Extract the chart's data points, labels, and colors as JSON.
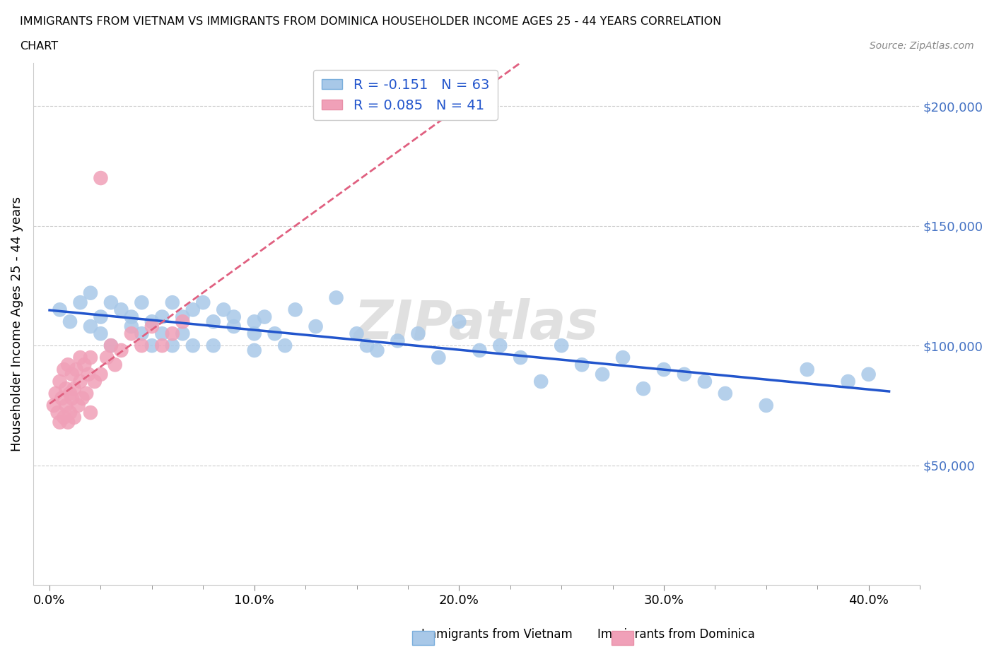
{
  "title_line1": "IMMIGRANTS FROM VIETNAM VS IMMIGRANTS FROM DOMINICA HOUSEHOLDER INCOME AGES 25 - 44 YEARS CORRELATION",
  "title_line2": "CHART",
  "source_text": "Source: ZipAtlas.com",
  "ylabel": "Householder Income Ages 25 - 44 years",
  "watermark": "ZIPatlas",
  "legend_label_vietnam": "R = -0.151   N = 63",
  "legend_label_dominica": "R = 0.085   N = 41",
  "vietnam_color": "#a8c8e8",
  "dominica_color": "#f0a0b8",
  "vietnam_line_color": "#2255cc",
  "dominica_line_color": "#e06080",
  "dominica_line_style": "--",
  "ytick_labels": [
    "$50,000",
    "$100,000",
    "$150,000",
    "$200,000"
  ],
  "ytick_values": [
    50000,
    100000,
    150000,
    200000
  ],
  "xtick_labels": [
    "0.0%",
    "",
    "",
    "",
    "10.0%",
    "",
    "",
    "",
    "20.0%",
    "",
    "",
    "",
    "30.0%",
    "",
    "",
    "",
    "40.0%"
  ],
  "xtick_values": [
    0.0,
    0.025,
    0.05,
    0.075,
    0.1,
    0.125,
    0.15,
    0.175,
    0.2,
    0.225,
    0.25,
    0.275,
    0.3,
    0.325,
    0.35,
    0.375,
    0.4
  ],
  "xlim": [
    -0.008,
    0.425
  ],
  "ylim": [
    0,
    218000
  ],
  "vietnam_x": [
    0.005,
    0.01,
    0.015,
    0.02,
    0.02,
    0.025,
    0.025,
    0.03,
    0.03,
    0.035,
    0.04,
    0.04,
    0.045,
    0.045,
    0.05,
    0.05,
    0.055,
    0.055,
    0.06,
    0.06,
    0.065,
    0.065,
    0.07,
    0.07,
    0.075,
    0.08,
    0.08,
    0.085,
    0.09,
    0.09,
    0.1,
    0.1,
    0.1,
    0.105,
    0.11,
    0.115,
    0.12,
    0.13,
    0.14,
    0.15,
    0.155,
    0.16,
    0.17,
    0.18,
    0.19,
    0.2,
    0.21,
    0.22,
    0.23,
    0.24,
    0.25,
    0.26,
    0.27,
    0.28,
    0.29,
    0.3,
    0.31,
    0.32,
    0.33,
    0.35,
    0.37,
    0.39,
    0.4
  ],
  "vietnam_y": [
    115000,
    110000,
    118000,
    108000,
    122000,
    112000,
    105000,
    118000,
    100000,
    115000,
    108000,
    112000,
    105000,
    118000,
    110000,
    100000,
    112000,
    105000,
    118000,
    100000,
    112000,
    105000,
    115000,
    100000,
    118000,
    110000,
    100000,
    115000,
    108000,
    112000,
    110000,
    105000,
    98000,
    112000,
    105000,
    100000,
    115000,
    108000,
    120000,
    105000,
    100000,
    98000,
    102000,
    105000,
    95000,
    110000,
    98000,
    100000,
    95000,
    85000,
    100000,
    92000,
    88000,
    95000,
    82000,
    90000,
    88000,
    85000,
    80000,
    75000,
    90000,
    85000,
    88000
  ],
  "dominica_x": [
    0.002,
    0.003,
    0.004,
    0.005,
    0.005,
    0.006,
    0.007,
    0.007,
    0.008,
    0.008,
    0.009,
    0.009,
    0.01,
    0.01,
    0.011,
    0.011,
    0.012,
    0.012,
    0.013,
    0.014,
    0.015,
    0.015,
    0.016,
    0.017,
    0.018,
    0.019,
    0.02,
    0.02,
    0.022,
    0.025,
    0.028,
    0.03,
    0.032,
    0.035,
    0.04,
    0.045,
    0.05,
    0.055,
    0.06,
    0.065,
    0.025
  ],
  "dominica_y": [
    75000,
    80000,
    72000,
    68000,
    85000,
    78000,
    70000,
    90000,
    75000,
    82000,
    68000,
    92000,
    80000,
    72000,
    88000,
    78000,
    82000,
    70000,
    90000,
    75000,
    95000,
    85000,
    78000,
    92000,
    80000,
    88000,
    95000,
    72000,
    85000,
    88000,
    95000,
    100000,
    92000,
    98000,
    105000,
    100000,
    108000,
    100000,
    105000,
    110000,
    170000
  ],
  "bottom_legend_vietnam": "Immigrants from Vietnam",
  "bottom_legend_dominica": "Immigrants from Dominica"
}
